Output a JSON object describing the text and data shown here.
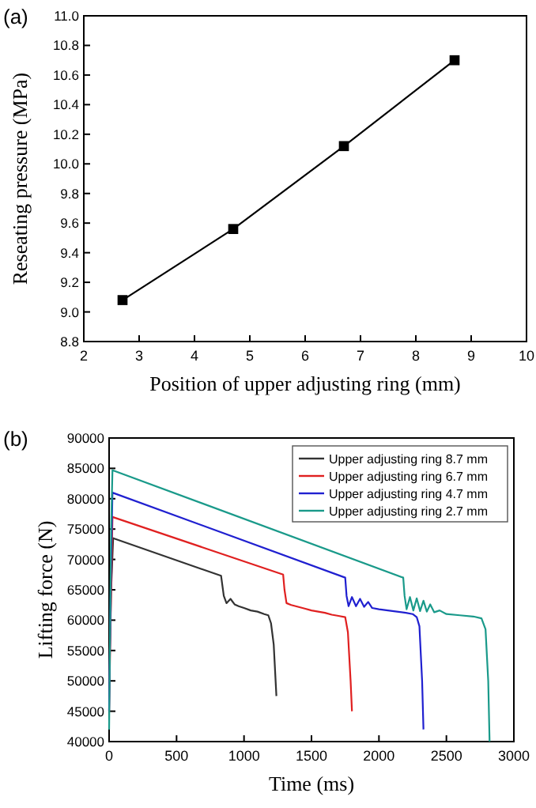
{
  "chart_data": [
    {
      "type": "line",
      "title": "(a)",
      "xlabel": "Position of upper adjusting ring (mm)",
      "ylabel": "Reseating pressure (MPa)",
      "marker": "square",
      "line_style": "solid",
      "grid": false,
      "legend": false,
      "xlim": [
        2,
        10
      ],
      "xticks": [
        2,
        3,
        4,
        5,
        6,
        7,
        8,
        9,
        10
      ],
      "ylim": [
        8.8,
        11.0
      ],
      "yticks": [
        {
          "value": 8.8,
          "label": "8.8"
        },
        {
          "value": 9.0,
          "label": "9.0"
        },
        {
          "value": 9.2,
          "label": "9.2"
        },
        {
          "value": 9.4,
          "label": "9.4"
        },
        {
          "value": 9.6,
          "label": "9.6"
        },
        {
          "value": 9.8,
          "label": "9.8"
        },
        {
          "value": 10.0,
          "label": "10.0"
        },
        {
          "value": 10.2,
          "label": "10.2"
        },
        {
          "value": 10.4,
          "label": "10.4"
        },
        {
          "value": 10.6,
          "label": "10.6"
        },
        {
          "value": 10.8,
          "label": "10.8"
        },
        {
          "value": 11.0,
          "label": "11.0"
        }
      ],
      "series": [
        {
          "color": "#000000",
          "x": [
            2.7,
            4.7,
            6.7,
            8.7
          ],
          "values": [
            9.08,
            9.56,
            10.12,
            10.7
          ]
        }
      ]
    },
    {
      "type": "line",
      "title": "(b)",
      "xlabel": "Time (ms)",
      "ylabel": "Lifting force (N)",
      "marker": "none",
      "line_style": "solid",
      "grid": false,
      "legend": "top right",
      "xlim": [
        0,
        3000
      ],
      "xticks": [
        0,
        500,
        1000,
        1500,
        2000,
        2500,
        3000
      ],
      "ylim": [
        40000,
        90000
      ],
      "yticks": [
        40000,
        45000,
        50000,
        55000,
        60000,
        65000,
        70000,
        75000,
        80000,
        85000,
        90000
      ],
      "series": [
        {
          "name": "Upper adjusting ring 8.7 mm",
          "color": "#333333",
          "x": [
            0,
            15,
            30,
            830,
            850,
            870,
            900,
            930,
            960,
            1000,
            1050,
            1100,
            1150,
            1180,
            1200,
            1220,
            1240
          ],
          "values": [
            50000,
            65000,
            73500,
            67300,
            64000,
            62800,
            63500,
            62600,
            62300,
            62000,
            61600,
            61400,
            61000,
            60800,
            59500,
            56000,
            47500
          ]
        },
        {
          "name": "Upper adjusting ring 6.7 mm",
          "color": "#e02020",
          "x": [
            0,
            15,
            25,
            1290,
            1300,
            1315,
            1350,
            1400,
            1450,
            1500,
            1550,
            1600,
            1650,
            1700,
            1750,
            1770,
            1790,
            1800
          ],
          "values": [
            45000,
            65000,
            77000,
            67500,
            65000,
            62800,
            62500,
            62200,
            61900,
            61600,
            61400,
            61200,
            60900,
            60700,
            60500,
            58000,
            50000,
            45000
          ]
        },
        {
          "name": "Upper adjusting ring 4.7 mm",
          "color": "#2020d0",
          "x": [
            0,
            15,
            25,
            1750,
            1760,
            1775,
            1800,
            1830,
            1860,
            1890,
            1920,
            1950,
            2000,
            2100,
            2200,
            2250,
            2280,
            2300,
            2320,
            2330
          ],
          "values": [
            45000,
            70000,
            81000,
            67000,
            64000,
            62300,
            63800,
            62300,
            63500,
            62200,
            63000,
            62000,
            61800,
            61500,
            61200,
            61000,
            60500,
            59000,
            50000,
            42000
          ]
        },
        {
          "name": "Upper adjusting ring 2.7 mm",
          "color": "#1a9a8a",
          "x": [
            0,
            15,
            25,
            2180,
            2190,
            2205,
            2230,
            2255,
            2280,
            2305,
            2330,
            2355,
            2380,
            2410,
            2450,
            2500,
            2600,
            2700,
            2760,
            2790,
            2810,
            2820
          ],
          "values": [
            42000,
            75000,
            84700,
            67000,
            64000,
            61800,
            63800,
            61600,
            63600,
            61500,
            63200,
            61400,
            62600,
            61300,
            61600,
            61000,
            60800,
            60600,
            60300,
            58500,
            50000,
            40000
          ]
        }
      ]
    }
  ]
}
